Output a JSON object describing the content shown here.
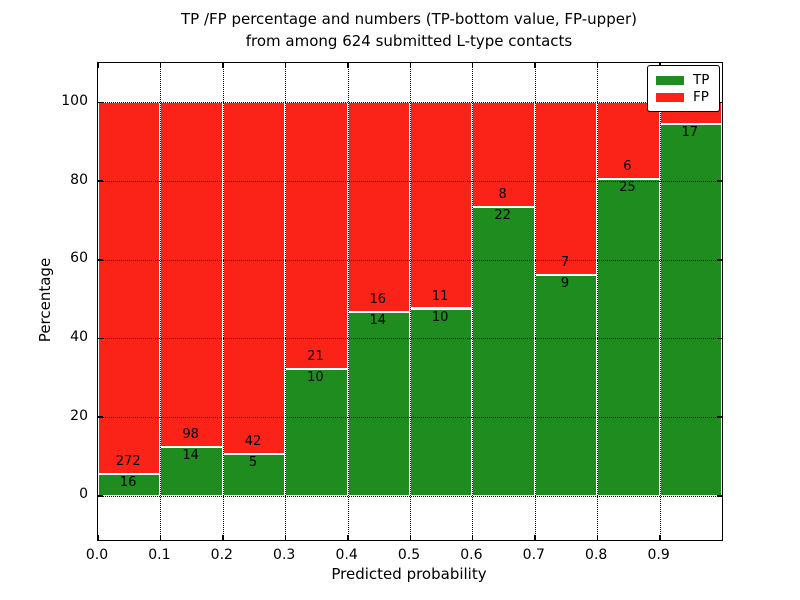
{
  "chart_data": {
    "type": "bar",
    "stacked": true,
    "title_line1": "TP /FP percentage and numbers (TP-bottom value, FP-upper)",
    "title_line2": "from among 624 submitted L-type contacts",
    "xlabel": "Predicted probability",
    "ylabel": "Percentage",
    "x_tick_labels": [
      "0.0",
      "0.1",
      "0.2",
      "0.3",
      "0.4",
      "0.5",
      "0.6",
      "0.7",
      "0.8",
      "0.9"
    ],
    "y_ticks": [
      0,
      20,
      40,
      60,
      80,
      100
    ],
    "y_tick_labels": [
      "0",
      "20",
      "40",
      "60",
      "80",
      "100"
    ],
    "xlim": [
      0.0,
      1.0
    ],
    "ylim": [
      -11.2,
      110.0
    ],
    "bin_width": 0.1,
    "grid": true,
    "total_contacts": 624,
    "series": [
      {
        "name": "TP",
        "color": "#1e8c1e",
        "counts": [
          16,
          14,
          5,
          10,
          14,
          10,
          22,
          9,
          25,
          17
        ]
      },
      {
        "name": "FP",
        "color": "#fb2318",
        "counts": [
          272,
          98,
          42,
          21,
          16,
          11,
          8,
          7,
          6,
          1
        ]
      }
    ],
    "tp_percent": [
      5.56,
      12.5,
      10.64,
      32.26,
      46.67,
      47.62,
      73.33,
      56.25,
      80.65,
      94.44
    ],
    "bar_labels": {
      "tp": [
        "16",
        "14",
        "5",
        "10",
        "14",
        "10",
        "22",
        "9",
        "25",
        "17"
      ],
      "fp": [
        "272",
        "98",
        "42",
        "21",
        "16",
        "11",
        "8",
        "7",
        "6",
        ""
      ]
    },
    "legend": {
      "position": "upper-right",
      "entries": [
        {
          "label": "TP",
          "color": "#1e8c1e"
        },
        {
          "label": "FP",
          "color": "#fb2318"
        }
      ]
    }
  }
}
